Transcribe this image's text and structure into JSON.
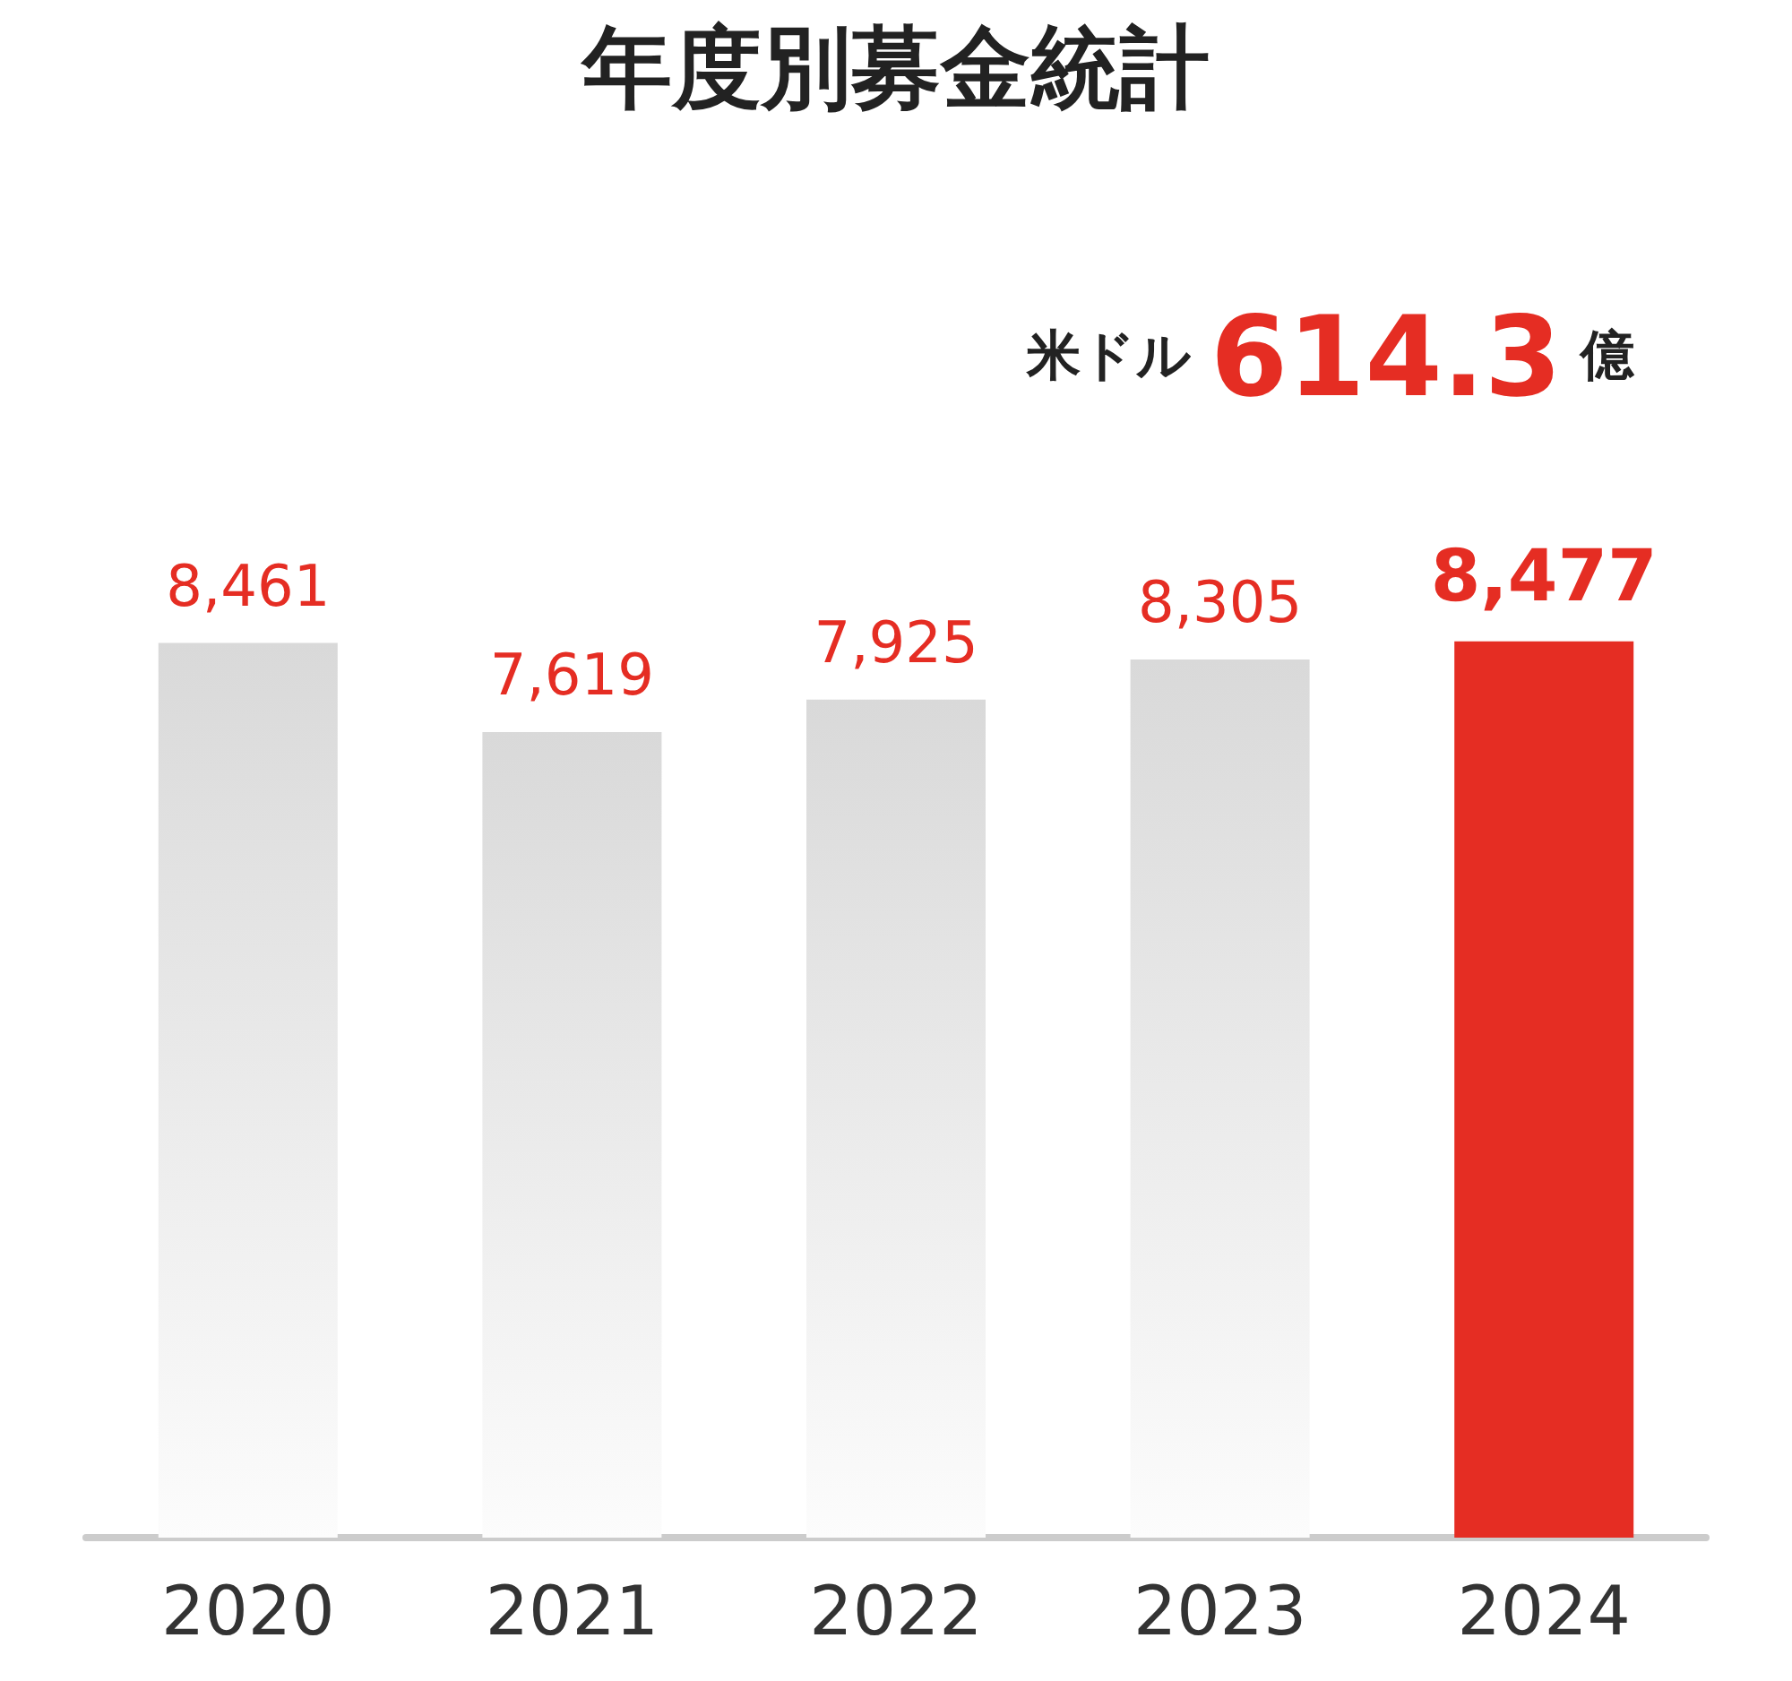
{
  "chart_data": {
    "type": "bar",
    "title": "年度別募金統計",
    "annotations": [
      "米ドル 614.3 億"
    ],
    "categories": [
      "2020",
      "2021",
      "2022",
      "2023",
      "2024"
    ],
    "values": [
      8461,
      7619,
      7925,
      8305,
      8477
    ],
    "value_labels": [
      "8,461",
      "7,619",
      "7,925",
      "8,305",
      "8,477"
    ],
    "colors": [
      "#d9d9d9",
      "#d9d9d9",
      "#d9d9d9",
      "#d9d9d9",
      "#e52d23"
    ],
    "tick_labels": "x"
  }
}
